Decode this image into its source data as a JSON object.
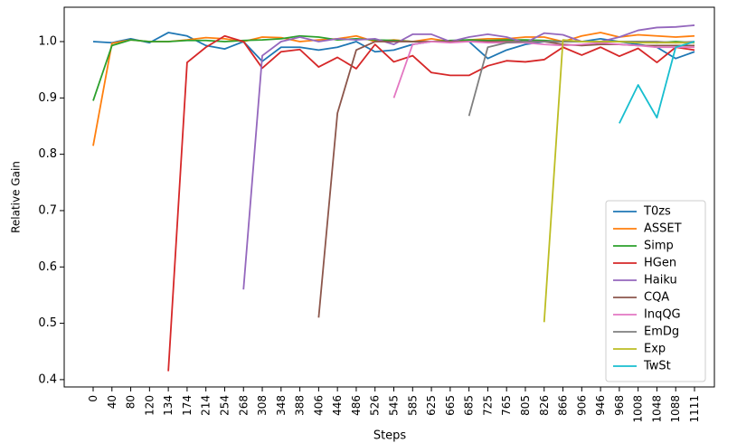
{
  "chart_data": {
    "type": "line",
    "xlabel": "Steps",
    "ylabel": "Relative Gain",
    "categories": [
      "0",
      "40",
      "80",
      "120",
      "134",
      "174",
      "214",
      "254",
      "268",
      "308",
      "348",
      "388",
      "406",
      "446",
      "486",
      "526",
      "545",
      "585",
      "625",
      "665",
      "685",
      "725",
      "765",
      "805",
      "826",
      "866",
      "906",
      "946",
      "968",
      "1008",
      "1048",
      "1088",
      "1111"
    ],
    "series": [
      {
        "name": "T0zs",
        "color": "#1f77b4",
        "values": [
          1.0,
          0.998,
          1.005,
          0.998,
          1.016,
          1.01,
          0.993,
          0.987,
          1.0,
          0.965,
          0.99,
          0.99,
          0.985,
          0.99,
          1.0,
          0.982,
          0.985,
          0.995,
          1.0,
          1.0,
          1.0,
          0.97,
          0.985,
          0.995,
          1.0,
          1.0,
          1.0,
          1.005,
          1.0,
          0.995,
          0.99,
          0.97,
          0.982
        ]
      },
      {
        "name": "ASSET",
        "color": "#ff7f0e",
        "values": [
          0.815,
          0.997,
          1.003,
          1.0,
          1.0,
          1.003,
          1.007,
          1.005,
          1.0,
          1.008,
          1.007,
          1.0,
          1.003,
          1.005,
          1.01,
          1.0,
          1.003,
          1.0,
          1.005,
          1.0,
          1.003,
          1.005,
          1.005,
          1.008,
          1.008,
          1.0,
          1.01,
          1.016,
          1.008,
          1.012,
          1.01,
          1.008,
          1.01
        ]
      },
      {
        "name": "Simp",
        "color": "#2ca02c",
        "values": [
          0.895,
          0.993,
          1.003,
          1.0,
          1.0,
          1.002,
          1.002,
          1.0,
          1.002,
          1.003,
          1.005,
          1.01,
          1.008,
          1.003,
          1.005,
          1.003,
          1.002,
          1.0,
          1.0,
          1.002,
          1.003,
          1.002,
          1.003,
          1.003,
          1.002,
          1.0,
          1.0,
          1.0,
          1.0,
          1.0,
          0.998,
          1.0,
          0.998
        ]
      },
      {
        "name": "HGen",
        "color": "#d62728",
        "values": [
          null,
          null,
          null,
          null,
          0.415,
          0.963,
          0.99,
          1.01,
          1.0,
          0.953,
          0.982,
          0.986,
          0.955,
          0.972,
          0.952,
          0.995,
          0.964,
          0.975,
          0.945,
          0.94,
          0.94,
          0.957,
          0.966,
          0.964,
          0.968,
          0.99,
          0.976,
          0.99,
          0.974,
          0.988,
          0.963,
          0.99,
          0.985
        ]
      },
      {
        "name": "Haiku",
        "color": "#9467bd",
        "values": [
          null,
          null,
          null,
          null,
          null,
          null,
          null,
          null,
          0.56,
          0.975,
          1.0,
          1.008,
          1.0,
          1.005,
          1.003,
          1.005,
          0.995,
          1.013,
          1.013,
          1.0,
          1.008,
          1.013,
          1.008,
          0.998,
          1.015,
          1.012,
          1.0,
          1.0,
          1.008,
          1.02,
          1.025,
          1.026,
          1.029
        ]
      },
      {
        "name": "CQA",
        "color": "#8c564b",
        "values": [
          null,
          null,
          null,
          null,
          null,
          null,
          null,
          null,
          null,
          null,
          null,
          null,
          0.51,
          0.873,
          0.985,
          1.0,
          1.0,
          1.0,
          1.0,
          1.0,
          1.0,
          1.0,
          1.0,
          1.0,
          1.0,
          0.995,
          0.993,
          0.995,
          0.995,
          0.993,
          0.993,
          0.993,
          0.993
        ]
      },
      {
        "name": "InqQG",
        "color": "#e377c2",
        "values": [
          null,
          null,
          null,
          null,
          null,
          null,
          null,
          null,
          null,
          null,
          null,
          null,
          null,
          null,
          null,
          null,
          0.9,
          0.995,
          1.0,
          0.998,
          1.0,
          0.998,
          0.998,
          0.998,
          0.995,
          0.993,
          0.995,
          0.998,
          0.995,
          0.993,
          0.99,
          0.99,
          0.99
        ]
      },
      {
        "name": "EmDg",
        "color": "#7f7f7f",
        "values": [
          null,
          null,
          null,
          null,
          null,
          null,
          null,
          null,
          null,
          null,
          null,
          null,
          null,
          null,
          null,
          null,
          null,
          null,
          null,
          null,
          0.868,
          0.99,
          0.998,
          1.0,
          1.0,
          1.0,
          1.0,
          1.0,
          1.0,
          1.0,
          1.0,
          0.998,
          1.0
        ]
      },
      {
        "name": "Exp",
        "color": "#bcbd22",
        "values": [
          null,
          null,
          null,
          null,
          null,
          null,
          null,
          null,
          null,
          null,
          null,
          null,
          null,
          null,
          null,
          null,
          null,
          null,
          null,
          null,
          null,
          null,
          null,
          null,
          0.502,
          1.003,
          1.0,
          1.0,
          1.0,
          0.998,
          0.998,
          0.998,
          0.998
        ]
      },
      {
        "name": "TwSt",
        "color": "#17becf",
        "values": [
          null,
          null,
          null,
          null,
          null,
          null,
          null,
          null,
          null,
          null,
          null,
          null,
          null,
          null,
          null,
          null,
          null,
          null,
          null,
          null,
          null,
          null,
          null,
          null,
          null,
          null,
          null,
          null,
          0.855,
          0.923,
          0.865,
          0.99,
          1.0
        ]
      }
    ],
    "ylim": [
      0.387,
      1.061
    ],
    "yticks": [
      0.4,
      0.5,
      0.6,
      0.7,
      0.8,
      0.9,
      {
        "value": 1,
        "label": "1.0"
      }
    ],
    "grid": false,
    "legend": "lower right"
  }
}
